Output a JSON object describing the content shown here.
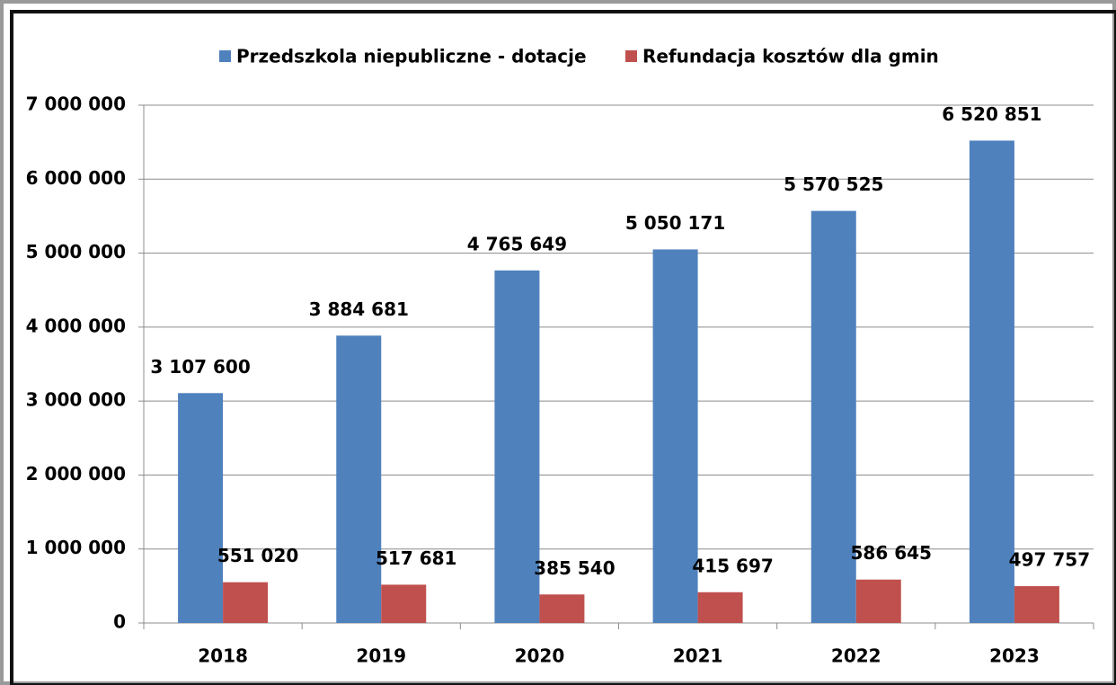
{
  "chart_data": {
    "type": "bar",
    "categories": [
      "2018",
      "2019",
      "2020",
      "2021",
      "2022",
      "2023"
    ],
    "series": [
      {
        "name": "Przedszkola niepubliczne - dotacje",
        "color": "#4f81bd",
        "values": [
          3107600,
          3884681,
          4765649,
          5050171,
          5570525,
          6520851
        ],
        "value_labels": [
          "3 107 600",
          "3 884 681",
          "4 765 649",
          "5 050 171",
          "5 570 525",
          "6 520 851"
        ]
      },
      {
        "name": "Refundacja kosztów dla gmin",
        "color": "#c0504d",
        "values": [
          551020,
          517681,
          385540,
          415697,
          586645,
          497757
        ],
        "value_labels": [
          "551 020",
          "517 681",
          "385 540",
          "415 697",
          "586 645",
          "497 757"
        ]
      }
    ],
    "ylim": [
      0,
      7000000
    ],
    "yticks": [
      0,
      {
        "value": 1000000,
        "label": "1 000 000"
      },
      {
        "value": 2000000,
        "label": "2 000 000"
      },
      {
        "value": 3000000,
        "label": "3 000 000"
      },
      {
        "value": 4000000,
        "label": "4 000 000"
      },
      {
        "value": 5000000,
        "label": "5 000 000"
      },
      {
        "value": 6000000,
        "label": "6 000 000"
      },
      {
        "value": 7000000,
        "label": "7 000 000"
      }
    ],
    "grid": true,
    "legend": "top"
  }
}
